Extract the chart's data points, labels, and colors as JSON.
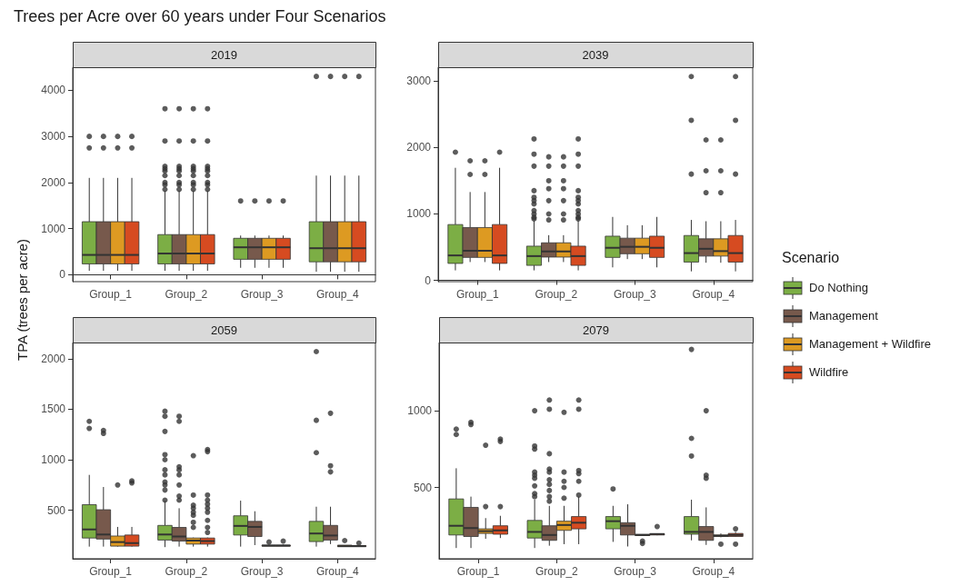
{
  "chart_data": [
    {
      "type": "box",
      "title": "Trees per Acre over 60 years under Four Scenarios",
      "subtitle": "2019",
      "ylabel": "TPA (trees per acre)",
      "legend": "right",
      "legend_title": "Scenario",
      "categories": [
        "Group_1",
        "Group_2",
        "Group_3",
        "Group_4"
      ],
      "ylim": [
        -150,
        4500
      ],
      "yticks": [
        0,
        1000,
        2000,
        3000,
        4000
      ],
      "series": [
        {
          "name": "Do Nothing",
          "color": "#7cae45",
          "boxes": [
            {
              "low": 85,
              "q1": 235,
              "median": 430,
              "q3": 1150,
              "high": 2100,
              "outliers": [
                2750,
                3000
              ]
            },
            {
              "low": 85,
              "q1": 235,
              "median": 460,
              "q3": 870,
              "high": 1820,
              "outliers": [
                1850,
                1950,
                2000,
                2150,
                2250,
                2300,
                2350,
                2900,
                3600
              ]
            },
            {
              "low": 150,
              "q1": 335,
              "median": 595,
              "q3": 790,
              "high": 850,
              "outliers": [
                1600
              ]
            },
            {
              "low": 65,
              "q1": 280,
              "median": 575,
              "q3": 1150,
              "high": 2150,
              "outliers": [
                4300
              ]
            }
          ]
        },
        {
          "name": "Management",
          "color": "#77594c",
          "boxes": [
            {
              "low": 85,
              "q1": 235,
              "median": 430,
              "q3": 1150,
              "high": 2100,
              "outliers": [
                2750,
                3000
              ]
            },
            {
              "low": 85,
              "q1": 235,
              "median": 460,
              "q3": 870,
              "high": 1820,
              "outliers": [
                1850,
                1950,
                2000,
                2150,
                2250,
                2300,
                2350,
                2900,
                3600
              ]
            },
            {
              "low": 150,
              "q1": 335,
              "median": 595,
              "q3": 790,
              "high": 850,
              "outliers": [
                1600
              ]
            },
            {
              "low": 65,
              "q1": 280,
              "median": 575,
              "q3": 1150,
              "high": 2150,
              "outliers": [
                4300
              ]
            }
          ]
        },
        {
          "name": "Management + Wildfire",
          "color": "#dd9a22",
          "boxes": [
            {
              "low": 85,
              "q1": 235,
              "median": 430,
              "q3": 1150,
              "high": 2100,
              "outliers": [
                2750,
                3000
              ]
            },
            {
              "low": 85,
              "q1": 235,
              "median": 460,
              "q3": 870,
              "high": 1820,
              "outliers": [
                1850,
                1950,
                2000,
                2150,
                2250,
                2300,
                2350,
                2900,
                3600
              ]
            },
            {
              "low": 150,
              "q1": 335,
              "median": 595,
              "q3": 790,
              "high": 850,
              "outliers": [
                1600
              ]
            },
            {
              "low": 65,
              "q1": 280,
              "median": 575,
              "q3": 1150,
              "high": 2150,
              "outliers": [
                4300
              ]
            }
          ]
        },
        {
          "name": "Wildfire",
          "color": "#d64b21",
          "boxes": [
            {
              "low": 85,
              "q1": 235,
              "median": 430,
              "q3": 1150,
              "high": 2100,
              "outliers": [
                2750,
                3000
              ]
            },
            {
              "low": 85,
              "q1": 235,
              "median": 460,
              "q3": 870,
              "high": 1820,
              "outliers": [
                1850,
                1950,
                2000,
                2150,
                2250,
                2300,
                2350,
                2900,
                3600
              ]
            },
            {
              "low": 150,
              "q1": 335,
              "median": 595,
              "q3": 790,
              "high": 850,
              "outliers": [
                1600
              ]
            },
            {
              "low": 65,
              "q1": 280,
              "median": 575,
              "q3": 1150,
              "high": 2150,
              "outliers": [
                4300
              ]
            }
          ]
        }
      ]
    },
    {
      "type": "box",
      "title": "2039",
      "categories": [
        "Group_1",
        "Group_2",
        "Group_3",
        "Group_4"
      ],
      "ylim": [
        -20,
        3210
      ],
      "yticks": [
        0,
        1000,
        2000,
        3000
      ],
      "series": [
        {
          "color": "#7cae45",
          "boxes": [
            {
              "low": 150,
              "q1": 255,
              "median": 375,
              "q3": 840,
              "high": 1695,
              "outliers": [
                1930
              ]
            },
            {
              "low": 150,
              "q1": 225,
              "median": 365,
              "q3": 515,
              "high": 900,
              "outliers": [
                925,
                950,
                1000,
                1050,
                1150,
                1200,
                1250,
                1350,
                1720,
                1900,
                2130
              ]
            },
            {
              "low": 195,
              "q1": 345,
              "median": 490,
              "q3": 665,
              "high": 955
            },
            {
              "low": 135,
              "q1": 275,
              "median": 410,
              "q3": 675,
              "high": 910,
              "outliers": [
                1600,
                2410,
                3070
              ]
            }
          ]
        },
        {
          "color": "#77594c",
          "boxes": [
            {
              "low": 275,
              "q1": 345,
              "median": 445,
              "q3": 795,
              "high": 1330,
              "outliers": [
                1595,
                1800
              ]
            },
            {
              "low": 275,
              "q1": 350,
              "median": 435,
              "q3": 565,
              "high": 680,
              "outliers": [
                910,
                1000,
                1200,
                1380,
                1500,
                1720,
                1860
              ]
            },
            {
              "low": 320,
              "q1": 400,
              "median": 505,
              "q3": 635,
              "high": 830
            },
            {
              "low": 265,
              "q1": 365,
              "median": 475,
              "q3": 625,
              "high": 890,
              "outliers": [
                1320,
                1650,
                2115
              ]
            }
          ]
        },
        {
          "color": "#dd9a22",
          "boxes": [
            {
              "low": 275,
              "q1": 345,
              "median": 445,
              "q3": 795,
              "high": 1330,
              "outliers": [
                1595,
                1800
              ]
            },
            {
              "low": 275,
              "q1": 350,
              "median": 435,
              "q3": 565,
              "high": 680,
              "outliers": [
                910,
                1000,
                1200,
                1380,
                1500,
                1720,
                1860
              ]
            },
            {
              "low": 320,
              "q1": 400,
              "median": 505,
              "q3": 635,
              "high": 830
            },
            {
              "low": 265,
              "q1": 365,
              "median": 440,
              "q3": 625,
              "high": 890,
              "outliers": [
                1320,
                1650,
                2115
              ]
            }
          ]
        },
        {
          "color": "#d64b21",
          "boxes": [
            {
              "low": 150,
              "q1": 255,
              "median": 375,
              "q3": 840,
              "high": 1695,
              "outliers": [
                1930
              ]
            },
            {
              "low": 150,
              "q1": 225,
              "median": 365,
              "q3": 515,
              "high": 900,
              "outliers": [
                925,
                950,
                1000,
                1050,
                1150,
                1200,
                1250,
                1350,
                1720,
                1900,
                2130
              ]
            },
            {
              "low": 195,
              "q1": 345,
              "median": 490,
              "q3": 665,
              "high": 955
            },
            {
              "low": 135,
              "q1": 275,
              "median": 410,
              "q3": 675,
              "high": 910,
              "outliers": [
                1600,
                2410,
                3070
              ]
            }
          ]
        }
      ]
    },
    {
      "type": "box",
      "title": "2059",
      "categories": [
        "Group_1",
        "Group_2",
        "Group_3",
        "Group_4"
      ],
      "ylim": [
        20,
        2160
      ],
      "yticks": [
        500,
        1000,
        1500,
        2000
      ],
      "series": [
        {
          "color": "#7cae45",
          "boxes": [
            {
              "low": 140,
              "q1": 225,
              "median": 310,
              "q3": 555,
              "high": 850,
              "outliers": [
                1310,
                1380
              ]
            },
            {
              "low": 135,
              "q1": 205,
              "median": 260,
              "q3": 350,
              "high": 590,
              "outliers": [
                600,
                700,
                750,
                780,
                850,
                900,
                1000,
                1050,
                1280,
                1430,
                1480
              ]
            },
            {
              "low": 140,
              "q1": 255,
              "median": 345,
              "q3": 445,
              "high": 595
            },
            {
              "low": 140,
              "q1": 190,
              "median": 270,
              "q3": 390,
              "high": 535,
              "outliers": [
                1070,
                1390,
                2070
              ]
            }
          ]
        },
        {
          "color": "#77594c",
          "boxes": [
            {
              "low": 140,
              "q1": 215,
              "median": 260,
              "q3": 505,
              "high": 730,
              "outliers": [
                1260,
                1290
              ]
            },
            {
              "low": 140,
              "q1": 195,
              "median": 240,
              "q3": 330,
              "high": 520,
              "outliers": [
                600,
                640,
                750,
                850,
                900,
                930,
                1380,
                1430
              ]
            },
            {
              "low": 155,
              "q1": 240,
              "median": 335,
              "q3": 390,
              "high": 490
            },
            {
              "low": 165,
              "q1": 205,
              "median": 250,
              "q3": 350,
              "high": 535,
              "outliers": [
                880,
                940,
                1460
              ]
            }
          ]
        },
        {
          "color": "#dd9a22",
          "boxes": [
            {
              "low": 140,
              "q1": 145,
              "median": 185,
              "q3": 245,
              "high": 335,
              "outliers": [
                750
              ]
            },
            {
              "low": 140,
              "q1": 165,
              "median": 200,
              "q3": 225,
              "high": 230,
              "outliers": [
                330,
                380,
                450,
                480,
                520,
                550,
                650,
                1040
              ]
            },
            {
              "low": 145,
              "q1": 145,
              "median": 150,
              "q3": 155,
              "high": 160,
              "outliers": [
                185
              ]
            },
            {
              "low": 140,
              "q1": 140,
              "median": 145,
              "q3": 155,
              "high": 155,
              "outliers": [
                200
              ]
            }
          ]
        },
        {
          "color": "#d64b21",
          "boxes": [
            {
              "low": 140,
              "q1": 145,
              "median": 175,
              "q3": 255,
              "high": 335,
              "outliers": [
                770,
                790
              ]
            },
            {
              "low": 140,
              "q1": 165,
              "median": 195,
              "q3": 225,
              "high": 230,
              "outliers": [
                280,
                330,
                400,
                480,
                520,
                560,
                600,
                650,
                1080,
                1100
              ]
            },
            {
              "low": 145,
              "q1": 145,
              "median": 150,
              "q3": 155,
              "high": 160,
              "outliers": [
                195
              ]
            },
            {
              "low": 140,
              "q1": 140,
              "median": 145,
              "q3": 150,
              "high": 155,
              "outliers": [
                175
              ]
            }
          ]
        }
      ]
    },
    {
      "type": "box",
      "title": "2079",
      "categories": [
        "Group_1",
        "Group_2",
        "Group_3",
        "Group_4"
      ],
      "ylim": [
        35,
        1445
      ],
      "yticks": [
        500,
        1000
      ],
      "series": [
        {
          "color": "#7cae45",
          "boxes": [
            {
              "low": 105,
              "q1": 190,
              "median": 250,
              "q3": 425,
              "high": 625,
              "outliers": [
                845,
                880
              ]
            },
            {
              "low": 105,
              "q1": 170,
              "median": 210,
              "q3": 285,
              "high": 420,
              "outliers": [
                440,
                460,
                510,
                560,
                580,
                600,
                750,
                770,
                1000
              ]
            },
            {
              "low": 145,
              "q1": 230,
              "median": 280,
              "q3": 310,
              "high": 380,
              "outliers": [
                490
              ]
            },
            {
              "low": 155,
              "q1": 195,
              "median": 210,
              "q3": 310,
              "high": 420,
              "outliers": [
                705,
                820,
                1400
              ]
            }
          ]
        },
        {
          "color": "#77594c",
          "boxes": [
            {
              "low": 105,
              "q1": 180,
              "median": 235,
              "q3": 370,
              "high": 440,
              "outliers": [
                910,
                925
              ]
            },
            {
              "low": 120,
              "q1": 155,
              "median": 190,
              "q3": 250,
              "high": 380,
              "outliers": [
                410,
                440,
                480,
                520,
                550,
                600,
                620,
                720,
                1010,
                1070
              ]
            },
            {
              "low": 115,
              "q1": 190,
              "median": 250,
              "q3": 270,
              "high": 390
            },
            {
              "low": 125,
              "q1": 155,
              "median": 210,
              "q3": 245,
              "high": 370,
              "outliers": [
                560,
                580,
                1000
              ]
            }
          ]
        },
        {
          "color": "#dd9a22",
          "boxes": [
            {
              "low": 165,
              "q1": 200,
              "median": 215,
              "q3": 230,
              "high": 300,
              "outliers": [
                375,
                775
              ]
            },
            {
              "low": 130,
              "q1": 220,
              "median": 255,
              "q3": 280,
              "high": 380,
              "outliers": [
                430,
                500,
                540,
                600,
                990
              ]
            },
            {
              "low": 185,
              "q1": 186,
              "median": 190,
              "q3": 194,
              "high": 195,
              "outliers": [
                135,
                150
              ]
            },
            {
              "low": 175,
              "q1": 180,
              "median": 185,
              "q3": 190,
              "high": 200,
              "outliers": [
                130
              ]
            }
          ]
        },
        {
          "color": "#d64b21",
          "boxes": [
            {
              "low": 170,
              "q1": 195,
              "median": 220,
              "q3": 250,
              "high": 315,
              "outliers": [
                375,
                800,
                815
              ]
            },
            {
              "low": 130,
              "q1": 230,
              "median": 270,
              "q3": 310,
              "high": 440,
              "outliers": [
                450,
                540,
                590,
                610,
                1010,
                1070
              ]
            },
            {
              "low": 188,
              "q1": 190,
              "median": 196,
              "q3": 198,
              "high": 200,
              "outliers": [
                245
              ]
            },
            {
              "low": 178,
              "q1": 180,
              "median": 190,
              "q3": 200,
              "high": 210,
              "outliers": [
                130,
                230
              ]
            }
          ]
        }
      ]
    }
  ]
}
